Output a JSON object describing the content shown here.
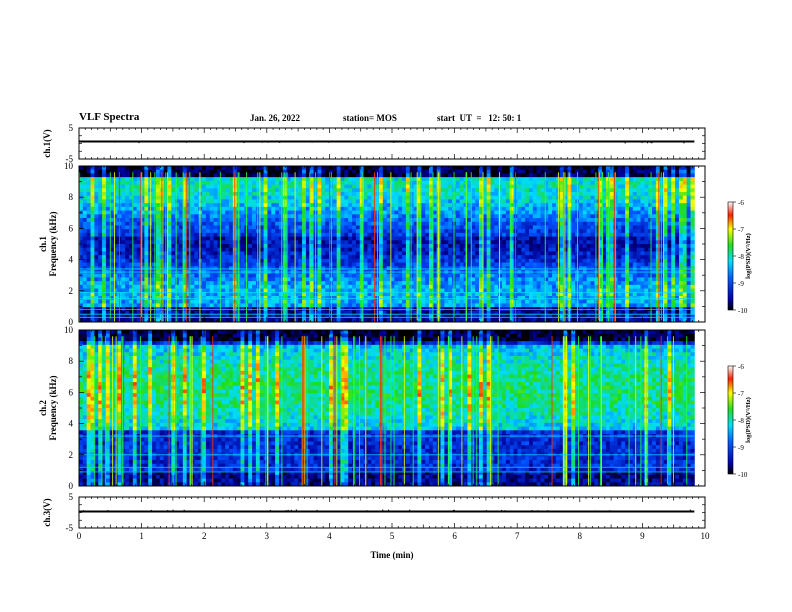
{
  "header": {
    "title": "VLF Spectra",
    "date": "Jan. 26, 2022",
    "station": "station= MOS",
    "start": "start  UT  =   12: 50: 1"
  },
  "chart_data": [
    {
      "type": "line",
      "panel": "ch1-voltage",
      "ylabel": "ch.1(V)",
      "yticks": [
        "5",
        "-5"
      ],
      "ylim": [
        -5,
        5
      ],
      "x": [
        0,
        9.83
      ],
      "values": [
        0,
        0
      ]
    },
    {
      "type": "heatmap",
      "panel": "ch1-spectrum",
      "ylabel": "ch.1\nFrequency (kHz)",
      "yticks": [
        "0",
        "2",
        "4",
        "6",
        "8",
        "10"
      ],
      "ylim": [
        0,
        10
      ],
      "xlim": [
        0,
        10
      ],
      "data_end_min": 9.83,
      "colorbar": {
        "label": "log(PSD)(V²/Hz)",
        "ticks": [
          "-6",
          "-7",
          "-8",
          "-9",
          "-10"
        ],
        "range": [
          -10,
          -6
        ]
      }
    },
    {
      "type": "heatmap",
      "panel": "ch2-spectrum",
      "ylabel": "ch.2\nFrequency (kHz)",
      "yticks": [
        "0",
        "2",
        "4",
        "6",
        "8",
        "10"
      ],
      "ylim": [
        0,
        10
      ],
      "xlim": [
        0,
        10
      ],
      "data_end_min": 9.83,
      "colorbar": {
        "label": "log(PSD)(V²/Hz)",
        "ticks": [
          "-6",
          "-7",
          "-8",
          "-9",
          "-10"
        ],
        "range": [
          -10,
          -6
        ]
      }
    },
    {
      "type": "line",
      "panel": "ch3-voltage",
      "ylabel": "ch.3(V)",
      "yticks": [
        "5",
        "-5"
      ],
      "ylim": [
        -5,
        5
      ],
      "x": [
        0,
        9.83
      ],
      "values": [
        0,
        0
      ]
    }
  ],
  "xaxis": {
    "label": "Time  (min)",
    "ticks": [
      "0",
      "1",
      "2",
      "3",
      "4",
      "5",
      "6",
      "7",
      "8",
      "9",
      "10"
    ],
    "range": [
      0,
      10
    ]
  }
}
